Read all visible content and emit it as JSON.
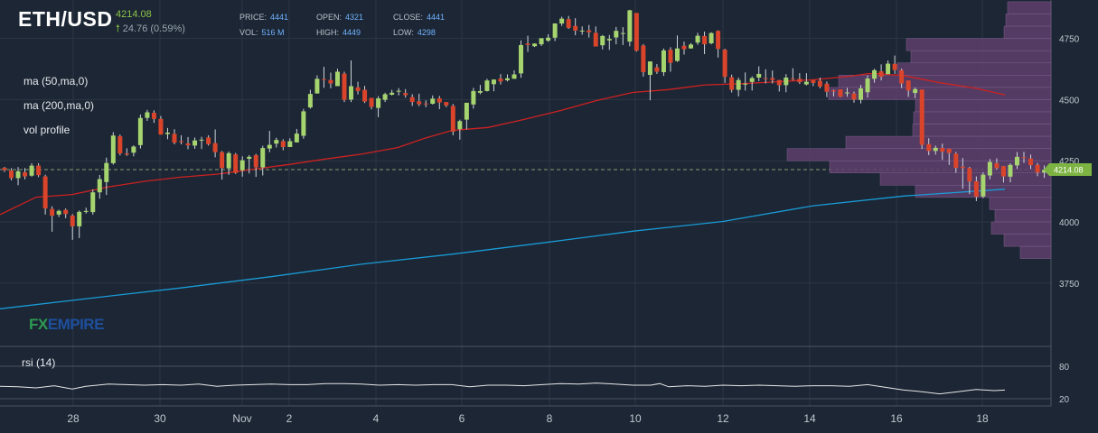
{
  "header": {
    "symbol": "ETH/USD",
    "last": "4214.08",
    "change": "24.76 (0.59%)",
    "price_label": "PRICE:",
    "price": "4441",
    "open_label": "OPEN:",
    "open": "4321",
    "close_label": "CLOSE:",
    "close": "4441",
    "vol_label": "VOL:",
    "vol": "516 M",
    "high_label": "HIGH:",
    "high": "4449",
    "low_label": "LOW:",
    "low": "4298"
  },
  "indicators": {
    "ma50": "ma (50,ma,0)",
    "ma200": "ma (200,ma,0)",
    "volprofile": "vol profile",
    "rsi": "rsi (14)"
  },
  "watermark": {
    "fx": "FX",
    "empire": "EMPIRE"
  },
  "colors": {
    "background": "#1c2634",
    "up": "#a6d46e",
    "down": "#d9442b",
    "ma50": "#cc2222",
    "ma200": "#1a9bd7",
    "vp": "#5e3f6c",
    "grid": "#2b3644",
    "axis_text": "#c0c8d0",
    "price_tag": "#7cb342"
  },
  "chart_data": {
    "type": "candlestick",
    "price_axis": {
      "ticks": [
        3750,
        4000,
        4250,
        4500,
        4750
      ],
      "range": [
        3500,
        4900
      ]
    },
    "rsi_axis": {
      "ticks": [
        20,
        80
      ],
      "range": [
        0,
        100
      ]
    },
    "x_tick_labels": [
      "28",
      "30",
      "Nov",
      "2",
      "4",
      "6",
      "8",
      "10",
      "12",
      "14",
      "16",
      "18"
    ],
    "current_price": "4214.08",
    "candles": [
      [
        4221,
        4212,
        4225,
        4204
      ],
      [
        4210,
        4179,
        4220,
        4170
      ],
      [
        4179,
        4207,
        4224,
        4150
      ],
      [
        4203,
        4186,
        4220,
        4174
      ],
      [
        4189,
        4230,
        4240,
        4185
      ],
      [
        4230,
        4191,
        4240,
        4183
      ],
      [
        4186,
        4055,
        4193,
        4030
      ],
      [
        4053,
        4025,
        4064,
        3960
      ],
      [
        4030,
        4045,
        4050,
        4020
      ],
      [
        4049,
        4032,
        4055,
        4015
      ],
      [
        4026,
        3982,
        4032,
        3927
      ],
      [
        3982,
        4041,
        4047,
        3934
      ],
      [
        4041,
        4045,
        4058,
        4034
      ],
      [
        4040,
        4121,
        4133,
        4030
      ],
      [
        4121,
        4175,
        4192,
        4095
      ],
      [
        4163,
        4241,
        4263,
        4110
      ],
      [
        4240,
        4353,
        4367,
        4234
      ],
      [
        4350,
        4280,
        4357,
        4272
      ],
      [
        4280,
        4275,
        4301,
        4270
      ],
      [
        4283,
        4308,
        4313,
        4268
      ],
      [
        4314,
        4425,
        4439,
        4300
      ],
      [
        4425,
        4448,
        4458,
        4413
      ],
      [
        4446,
        4421,
        4456,
        4405
      ],
      [
        4421,
        4357,
        4433,
        4358
      ],
      [
        4359,
        4365,
        4384,
        4338
      ],
      [
        4360,
        4324,
        4379,
        4317
      ],
      [
        4330,
        4326,
        4354,
        4317
      ],
      [
        4321,
        4313,
        4347,
        4297
      ],
      [
        4312,
        4333,
        4345,
        4299
      ],
      [
        4333,
        4336,
        4348,
        4298
      ],
      [
        4345,
        4318,
        4354,
        4312
      ],
      [
        4322,
        4285,
        4378,
        4264
      ],
      [
        4285,
        4220,
        4290,
        4173
      ],
      [
        4219,
        4281,
        4288,
        4192
      ],
      [
        4276,
        4200,
        4282,
        4196
      ],
      [
        4211,
        4252,
        4268,
        4185
      ],
      [
        4258,
        4266,
        4273,
        4198
      ],
      [
        4273,
        4223,
        4278,
        4184
      ],
      [
        4223,
        4302,
        4311,
        4190
      ],
      [
        4300,
        4315,
        4372,
        4285
      ],
      [
        4320,
        4335,
        4344,
        4304
      ],
      [
        4330,
        4306,
        4338,
        4293
      ],
      [
        4306,
        4330,
        4342,
        4317
      ],
      [
        4325,
        4361,
        4380,
        4331
      ],
      [
        4352,
        4452,
        4462,
        4340
      ],
      [
        4468,
        4523,
        4540,
        4463
      ],
      [
        4525,
        4585,
        4599,
        4531
      ],
      [
        4584,
        4583,
        4634,
        4548
      ],
      [
        4580,
        4566,
        4610,
        4546
      ],
      [
        4555,
        4614,
        4626,
        4555
      ],
      [
        4606,
        4499,
        4614,
        4490
      ],
      [
        4500,
        4555,
        4660,
        4490
      ],
      [
        4550,
        4535,
        4573,
        4521
      ],
      [
        4540,
        4492,
        4556,
        4486
      ],
      [
        4507,
        4470,
        4504,
        4460
      ],
      [
        4466,
        4505,
        4514,
        4428
      ],
      [
        4499,
        4522,
        4528,
        4490
      ],
      [
        4520,
        4528,
        4540,
        4517
      ],
      [
        4533,
        4536,
        4547,
        4517
      ],
      [
        4527,
        4518,
        4543,
        4508
      ],
      [
        4510,
        4490,
        4522,
        4474
      ],
      [
        4493,
        4481,
        4524,
        4473
      ],
      [
        4484,
        4483,
        4497,
        4469
      ],
      [
        4483,
        4504,
        4517,
        4480
      ],
      [
        4505,
        4488,
        4515,
        4461
      ],
      [
        4490,
        4476,
        4487,
        4469
      ],
      [
        4474,
        4369,
        4482,
        4354
      ],
      [
        4379,
        4412,
        4418,
        4336
      ],
      [
        4418,
        4487,
        4483,
        4378
      ],
      [
        4480,
        4535,
        4548,
        4463
      ],
      [
        4528,
        4535,
        4560,
        4522
      ],
      [
        4535,
        4578,
        4585,
        4533
      ],
      [
        4563,
        4582,
        4577,
        4534
      ],
      [
        4586,
        4574,
        4604,
        4562
      ],
      [
        4579,
        4587,
        4603,
        4574
      ],
      [
        4585,
        4603,
        4620,
        4593
      ],
      [
        4607,
        4723,
        4742,
        4589
      ],
      [
        4729,
        4723,
        4761,
        4695
      ],
      [
        4718,
        4729,
        4730,
        4715
      ],
      [
        4726,
        4751,
        4751,
        4719
      ],
      [
        4741,
        4753,
        4767,
        4736
      ],
      [
        4753,
        4811,
        4812,
        4739
      ],
      [
        4811,
        4831,
        4839,
        4801
      ],
      [
        4829,
        4793,
        4842,
        4789
      ],
      [
        4801,
        4782,
        4833,
        4763
      ],
      [
        4780,
        4782,
        4799,
        4765
      ],
      [
        4783,
        4775,
        4805,
        4754
      ],
      [
        4773,
        4717,
        4799,
        4722
      ],
      [
        4722,
        4760,
        4764,
        4705
      ],
      [
        4742,
        4748,
        4764,
        4703
      ],
      [
        4754,
        4781,
        4797,
        4726
      ],
      [
        4770,
        4772,
        4796,
        4723
      ],
      [
        4737,
        4865,
        4867,
        4718
      ],
      [
        4854,
        4700,
        4854,
        4696
      ],
      [
        4721,
        4612,
        4727,
        4594
      ],
      [
        4601,
        4656,
        4644,
        4497
      ],
      [
        4632,
        4614,
        4645,
        4605
      ],
      [
        4612,
        4701,
        4709,
        4597
      ],
      [
        4704,
        4650,
        4714,
        4614
      ],
      [
        4658,
        4709,
        4762,
        4654
      ],
      [
        4720,
        4706,
        4737,
        4684
      ],
      [
        4709,
        4725,
        4731,
        4712
      ],
      [
        4733,
        4761,
        4773,
        4724
      ],
      [
        4760,
        4726,
        4778,
        4686
      ],
      [
        4730,
        4772,
        4775,
        4726
      ],
      [
        4781,
        4707,
        4783,
        4672
      ],
      [
        4704,
        4593,
        4708,
        4568
      ],
      [
        4591,
        4540,
        4602,
        4529
      ],
      [
        4540,
        4580,
        4590,
        4513
      ],
      [
        4564,
        4565,
        4611,
        4537
      ],
      [
        4572,
        4588,
        4595,
        4537
      ],
      [
        4590,
        4605,
        4636,
        4575
      ],
      [
        4588,
        4586,
        4624,
        4566
      ],
      [
        4588,
        4580,
        4619,
        4566
      ],
      [
        4580,
        4559,
        4574,
        4533
      ],
      [
        4559,
        4590,
        4604,
        4530
      ],
      [
        4586,
        4584,
        4628,
        4578
      ],
      [
        4585,
        4571,
        4608,
        4564
      ],
      [
        4562,
        4573,
        4608,
        4558
      ],
      [
        4580,
        4568,
        4580,
        4555
      ],
      [
        4577,
        4553,
        4590,
        4546
      ],
      [
        4565,
        4532,
        4574,
        4510
      ],
      [
        4538,
        4533,
        4541,
        4513
      ],
      [
        4542,
        4512,
        4535,
        4510
      ],
      [
        4527,
        4529,
        4548,
        4512
      ],
      [
        4525,
        4500,
        4533,
        4487
      ],
      [
        4499,
        4546,
        4560,
        4484
      ],
      [
        4530,
        4586,
        4599,
        4508
      ],
      [
        4585,
        4620,
        4626,
        4569
      ],
      [
        4616,
        4593,
        4644,
        4578
      ],
      [
        4604,
        4647,
        4660,
        4620
      ],
      [
        4646,
        4621,
        4680,
        4605
      ],
      [
        4620,
        4566,
        4627,
        4547
      ],
      [
        4578,
        4537,
        4563,
        4511
      ],
      [
        4527,
        4543,
        4549,
        4506
      ],
      [
        4541,
        4315,
        4538,
        4298
      ],
      [
        4318,
        4290,
        4342,
        4273
      ],
      [
        4290,
        4303,
        4312,
        4275
      ],
      [
        4302,
        4287,
        4320,
        4253
      ],
      [
        4299,
        4282,
        4296,
        4233
      ],
      [
        4279,
        4221,
        4286,
        4201
      ],
      [
        4226,
        4220,
        4261,
        4136
      ],
      [
        4220,
        4165,
        4225,
        4114
      ],
      [
        4166,
        4103,
        4186,
        4085
      ],
      [
        4104,
        4193,
        4203,
        4097
      ],
      [
        4190,
        4245,
        4257,
        4174
      ],
      [
        4240,
        4220,
        4260,
        4213
      ],
      [
        4228,
        4186,
        4229,
        4161
      ],
      [
        4185,
        4233,
        4240,
        4162
      ],
      [
        4231,
        4266,
        4286,
        4216
      ],
      [
        4265,
        4261,
        4286,
        4241
      ],
      [
        4259,
        4232,
        4275,
        4216
      ],
      [
        4233,
        4202,
        4241,
        4187
      ],
      [
        4202,
        4213,
        4231,
        4180
      ]
    ],
    "ma50": [
      [
        0,
        4030
      ],
      [
        40,
        4101
      ],
      [
        80,
        4112
      ],
      [
        120,
        4143
      ],
      [
        160,
        4166
      ],
      [
        200,
        4183
      ],
      [
        240,
        4195
      ],
      [
        280,
        4215
      ],
      [
        320,
        4235
      ],
      [
        360,
        4257
      ],
      [
        400,
        4277
      ],
      [
        440,
        4304
      ],
      [
        470,
        4342
      ],
      [
        500,
        4374
      ],
      [
        540,
        4386
      ],
      [
        580,
        4419
      ],
      [
        620,
        4455
      ],
      [
        660,
        4496
      ],
      [
        700,
        4529
      ],
      [
        740,
        4541
      ],
      [
        780,
        4560
      ],
      [
        820,
        4565
      ],
      [
        860,
        4573
      ],
      [
        900,
        4581
      ],
      [
        940,
        4595
      ],
      [
        960,
        4606
      ],
      [
        970,
        4606
      ],
      [
        1000,
        4598
      ],
      [
        1040,
        4569
      ],
      [
        1080,
        4546
      ],
      [
        1112,
        4519
      ]
    ],
    "ma200": [
      [
        0,
        3645
      ],
      [
        100,
        3688
      ],
      [
        200,
        3730
      ],
      [
        300,
        3776
      ],
      [
        400,
        3827
      ],
      [
        500,
        3868
      ],
      [
        600,
        3914
      ],
      [
        700,
        3962
      ],
      [
        800,
        4002
      ],
      [
        900,
        4066
      ],
      [
        1000,
        4106
      ],
      [
        1112,
        4134
      ]
    ],
    "rsi": [
      [
        0,
        43
      ],
      [
        20,
        42
      ],
      [
        40,
        40
      ],
      [
        60,
        44
      ],
      [
        80,
        38
      ],
      [
        95,
        43
      ],
      [
        120,
        47
      ],
      [
        140,
        46
      ],
      [
        160,
        45
      ],
      [
        180,
        46
      ],
      [
        200,
        45
      ],
      [
        220,
        47
      ],
      [
        240,
        43
      ],
      [
        260,
        45
      ],
      [
        280,
        46
      ],
      [
        300,
        47
      ],
      [
        320,
        46
      ],
      [
        340,
        46
      ],
      [
        360,
        48
      ],
      [
        380,
        48
      ],
      [
        400,
        47
      ],
      [
        420,
        45
      ],
      [
        440,
        46
      ],
      [
        460,
        45
      ],
      [
        480,
        46
      ],
      [
        500,
        46
      ],
      [
        520,
        42
      ],
      [
        540,
        45
      ],
      [
        560,
        45
      ],
      [
        580,
        44
      ],
      [
        600,
        46
      ],
      [
        620,
        48
      ],
      [
        640,
        47
      ],
      [
        660,
        49
      ],
      [
        680,
        47
      ],
      [
        700,
        45
      ],
      [
        720,
        45
      ],
      [
        730,
        48
      ],
      [
        740,
        42
      ],
      [
        760,
        44
      ],
      [
        780,
        43
      ],
      [
        800,
        45
      ],
      [
        820,
        44
      ],
      [
        840,
        45
      ],
      [
        860,
        44
      ],
      [
        880,
        43
      ],
      [
        900,
        44
      ],
      [
        920,
        44
      ],
      [
        940,
        43
      ],
      [
        960,
        46
      ],
      [
        980,
        41
      ],
      [
        1000,
        36
      ],
      [
        1020,
        33
      ],
      [
        1040,
        29
      ],
      [
        1060,
        33
      ],
      [
        1080,
        37
      ],
      [
        1100,
        35
      ],
      [
        1112,
        36
      ]
    ],
    "volume_profile": [
      [
        4900,
        4850,
        48
      ],
      [
        4850,
        4800,
        50
      ],
      [
        4800,
        4750,
        52
      ],
      [
        4750,
        4700,
        160
      ],
      [
        4700,
        4650,
        155
      ],
      [
        4650,
        4600,
        170
      ],
      [
        4600,
        4550,
        235
      ],
      [
        4550,
        4500,
        246
      ],
      [
        4500,
        4450,
        150
      ],
      [
        4450,
        4400,
        152
      ],
      [
        4400,
        4350,
        153
      ],
      [
        4350,
        4300,
        227
      ],
      [
        4300,
        4250,
        292
      ],
      [
        4250,
        4200,
        245
      ],
      [
        4200,
        4150,
        189
      ],
      [
        4150,
        4100,
        150
      ],
      [
        4100,
        4050,
        68
      ],
      [
        4050,
        4000,
        62
      ],
      [
        4000,
        3950,
        66
      ],
      [
        3950,
        3900,
        52
      ],
      [
        3900,
        3850,
        34
      ]
    ]
  }
}
